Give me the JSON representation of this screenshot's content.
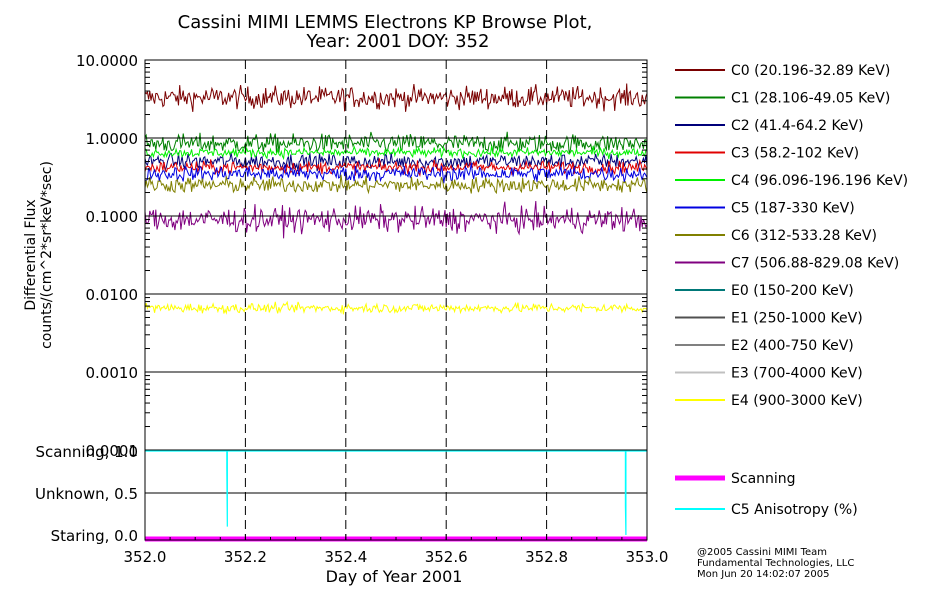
{
  "title_line1": "Cassini MIMI LEMMS Electrons KP Browse Plot,",
  "title_line2": "Year: 2001 DOY: 352",
  "credits": [
    "@2005 Cassini MIMI Team",
    "Fundamental Technologies, LLC",
    "Mon Jun 20 14:02:07 2005"
  ],
  "chart_data": [
    {
      "type": "line",
      "panel": "flux",
      "ylabel_line1": "Differential Flux",
      "ylabel_line2": "counts/(cm^2*sr*keV*sec)",
      "yscale": "log",
      "ylim": [
        0.0001,
        10.0
      ],
      "ytick_labels": [
        "10.0000",
        "1.0000",
        "0.1000",
        "0.0100",
        "0.0010",
        "0.0001"
      ],
      "ytick_values": [
        10,
        1,
        0.1,
        0.01,
        0.001,
        0.0001
      ],
      "xlim": [
        352.0,
        353.0
      ],
      "x_vertical_dashed_grid": [
        352.2,
        352.4,
        352.6,
        352.8
      ],
      "horizontal_grid": true,
      "legend_position": "right",
      "series": [
        {
          "name": "C0 (20.196-32.89 KeV)",
          "color": "#7a0000",
          "level": 3.3,
          "noise": 0.07,
          "plotted": true
        },
        {
          "name": "C1 (28.106-49.05 KeV)",
          "color": "#008000",
          "level": 0.85,
          "noise": 0.06,
          "plotted": true
        },
        {
          "name": "C2 (41.4-64.2 KeV)",
          "color": "#00007a",
          "level": 0.5,
          "noise": 0.05,
          "plotted": true
        },
        {
          "name": "C3 (58.2-102 KeV)",
          "color": "#e00000",
          "level": 0.42,
          "noise": 0.04,
          "plotted": true
        },
        {
          "name": "C4 (96.096-196.196 KeV)",
          "color": "#00f000",
          "level": 0.65,
          "noise": 0.03,
          "plotted": true
        },
        {
          "name": "C5 (187-330 KeV)",
          "color": "#0000e0",
          "level": 0.35,
          "noise": 0.05,
          "plotted": true
        },
        {
          "name": "C6 (312-533.28 KeV)",
          "color": "#808000",
          "level": 0.25,
          "noise": 0.05,
          "plotted": true
        },
        {
          "name": "C7 (506.88-829.08 KeV)",
          "color": "#800080",
          "level": 0.09,
          "noise": 0.08,
          "plotted": true
        },
        {
          "name": "E0 (150-200 KeV)",
          "color": "#007878",
          "level": null,
          "plotted": false
        },
        {
          "name": "E1 (250-1000 KeV)",
          "color": "#505050",
          "level": null,
          "plotted": false
        },
        {
          "name": "E2 (400-750 KeV)",
          "color": "#808080",
          "level": null,
          "plotted": false
        },
        {
          "name": "E3 (700-4000 KeV)",
          "color": "#c0c0c0",
          "level": null,
          "plotted": false
        },
        {
          "name": "E4 (900-3000 KeV)",
          "color": "#ffff00",
          "level": 0.0066,
          "noise": 0.03,
          "plotted": true
        }
      ]
    },
    {
      "type": "line",
      "panel": "mode",
      "ytick_labels": [
        "Scanning, 1.0",
        "Unknown, 0.5",
        "Staring, 0.0"
      ],
      "ytick_values": [
        1.0,
        0.5,
        0.0
      ],
      "ylim": [
        0.0,
        1.0
      ],
      "xlim": [
        352.0,
        353.0
      ],
      "xlabel": "Day of Year 2001",
      "xtick_labels": [
        "352.0",
        "352.2",
        "352.4",
        "352.6",
        "352.8",
        "353.0"
      ],
      "xtick_values": [
        352.0,
        352.2,
        352.4,
        352.6,
        352.8,
        353.0
      ],
      "series": [
        {
          "name": "Scanning",
          "color": "#ff00ff",
          "value": 0.0,
          "line_style": "thick"
        },
        {
          "name": "C5 Anisotropy (%)",
          "color": "#00ffff",
          "value": 1.0,
          "dips": [
            {
              "x": 352.163,
              "y": 0.8
            },
            {
              "x": 352.164,
              "y": 0.1
            },
            {
              "x": 352.957,
              "y": 0.35
            },
            {
              "x": 352.958,
              "y": 0.0
            }
          ]
        }
      ]
    }
  ]
}
